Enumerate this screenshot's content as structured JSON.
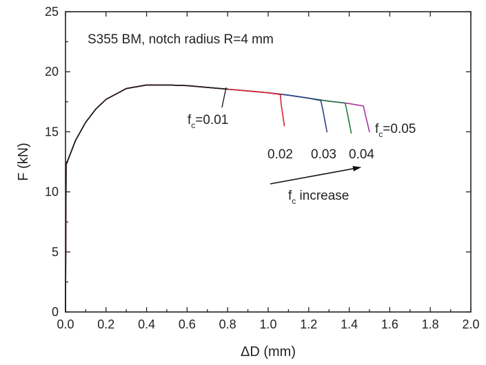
{
  "chart_data": {
    "type": "line",
    "title": "S355 BM, notch radius R=4 mm",
    "xlabel": "ΔD (mm)",
    "ylabel": "F (kN)",
    "xlim": [
      0,
      2.0
    ],
    "ylim": [
      0,
      25
    ],
    "xticks": [
      "0.0",
      "0.2",
      "0.4",
      "0.6",
      "0.8",
      "1.0",
      "1.2",
      "1.4",
      "1.6",
      "1.8",
      "2.0"
    ],
    "yticks": [
      "0",
      "5",
      "10",
      "15",
      "20",
      "25"
    ],
    "grid": false,
    "series": [
      {
        "fc": "0.01",
        "color": "#1a1a1a",
        "x": [
          0,
          0.003,
          0.006,
          0.02,
          0.05,
          0.1,
          0.15,
          0.2,
          0.3,
          0.4,
          0.5,
          0.6,
          0.7,
          0.8
        ],
        "y": [
          0,
          12.2,
          12.4,
          13.0,
          14.3,
          15.8,
          16.9,
          17.7,
          18.6,
          18.9,
          18.9,
          18.85,
          18.7,
          18.55
        ]
      },
      {
        "fc": "0.02",
        "color": "#e0202a",
        "x": [
          0,
          0.003,
          0.006,
          0.02,
          0.05,
          0.1,
          0.15,
          0.2,
          0.3,
          0.4,
          0.5,
          0.6,
          0.7,
          0.8,
          0.9,
          1.0,
          1.06,
          1.065,
          1.08
        ],
        "y": [
          0,
          12.2,
          12.4,
          13.0,
          14.3,
          15.8,
          16.9,
          17.7,
          18.6,
          18.9,
          18.9,
          18.85,
          18.7,
          18.55,
          18.4,
          18.25,
          18.1,
          17.2,
          15.5
        ]
      },
      {
        "fc": "0.03",
        "color": "#2c3f8c",
        "x": [
          0,
          0.003,
          0.006,
          0.02,
          0.05,
          0.1,
          0.15,
          0.2,
          0.3,
          0.4,
          0.5,
          0.6,
          0.7,
          0.8,
          0.9,
          1.0,
          1.1,
          1.2,
          1.26,
          1.27,
          1.29
        ],
        "y": [
          0,
          12.2,
          12.4,
          13.0,
          14.3,
          15.8,
          16.9,
          17.7,
          18.6,
          18.9,
          18.9,
          18.85,
          18.7,
          18.55,
          18.4,
          18.25,
          18.05,
          17.8,
          17.6,
          16.8,
          15.0
        ]
      },
      {
        "fc": "0.04",
        "color": "#1e7a3c",
        "x": [
          0,
          0.003,
          0.006,
          0.02,
          0.05,
          0.1,
          0.15,
          0.2,
          0.3,
          0.4,
          0.5,
          0.6,
          0.7,
          0.8,
          0.9,
          1.0,
          1.1,
          1.2,
          1.3,
          1.38,
          1.39,
          1.41
        ],
        "y": [
          0,
          12.2,
          12.4,
          13.0,
          14.3,
          15.8,
          16.9,
          17.7,
          18.6,
          18.9,
          18.9,
          18.85,
          18.7,
          18.55,
          18.4,
          18.25,
          18.05,
          17.8,
          17.55,
          17.4,
          16.6,
          14.9
        ]
      },
      {
        "fc": "0.05",
        "color": "#b0309a",
        "x": [
          0,
          0.003,
          0.006,
          0.02,
          0.05,
          0.1,
          0.15,
          0.2,
          0.3,
          0.4,
          0.5,
          0.6,
          0.7,
          0.8,
          0.9,
          1.0,
          1.1,
          1.2,
          1.3,
          1.4,
          1.47,
          1.48,
          1.5
        ],
        "y": [
          0,
          12.2,
          12.4,
          13.0,
          14.3,
          15.8,
          16.9,
          17.7,
          18.6,
          18.9,
          18.9,
          18.85,
          18.7,
          18.55,
          18.4,
          18.25,
          18.05,
          17.8,
          17.55,
          17.35,
          17.15,
          16.4,
          15.0
        ]
      }
    ],
    "annotations": {
      "fc01": {
        "main": "f",
        "sub": "c",
        "rest": "=0.01"
      },
      "fc05": {
        "main": "f",
        "sub": "c",
        "rest": "=0.05"
      },
      "l02": "0.02",
      "l03": "0.03",
      "l04": "0.04",
      "increase": {
        "main": "f",
        "sub": "c",
        "rest": " increase"
      }
    }
  }
}
